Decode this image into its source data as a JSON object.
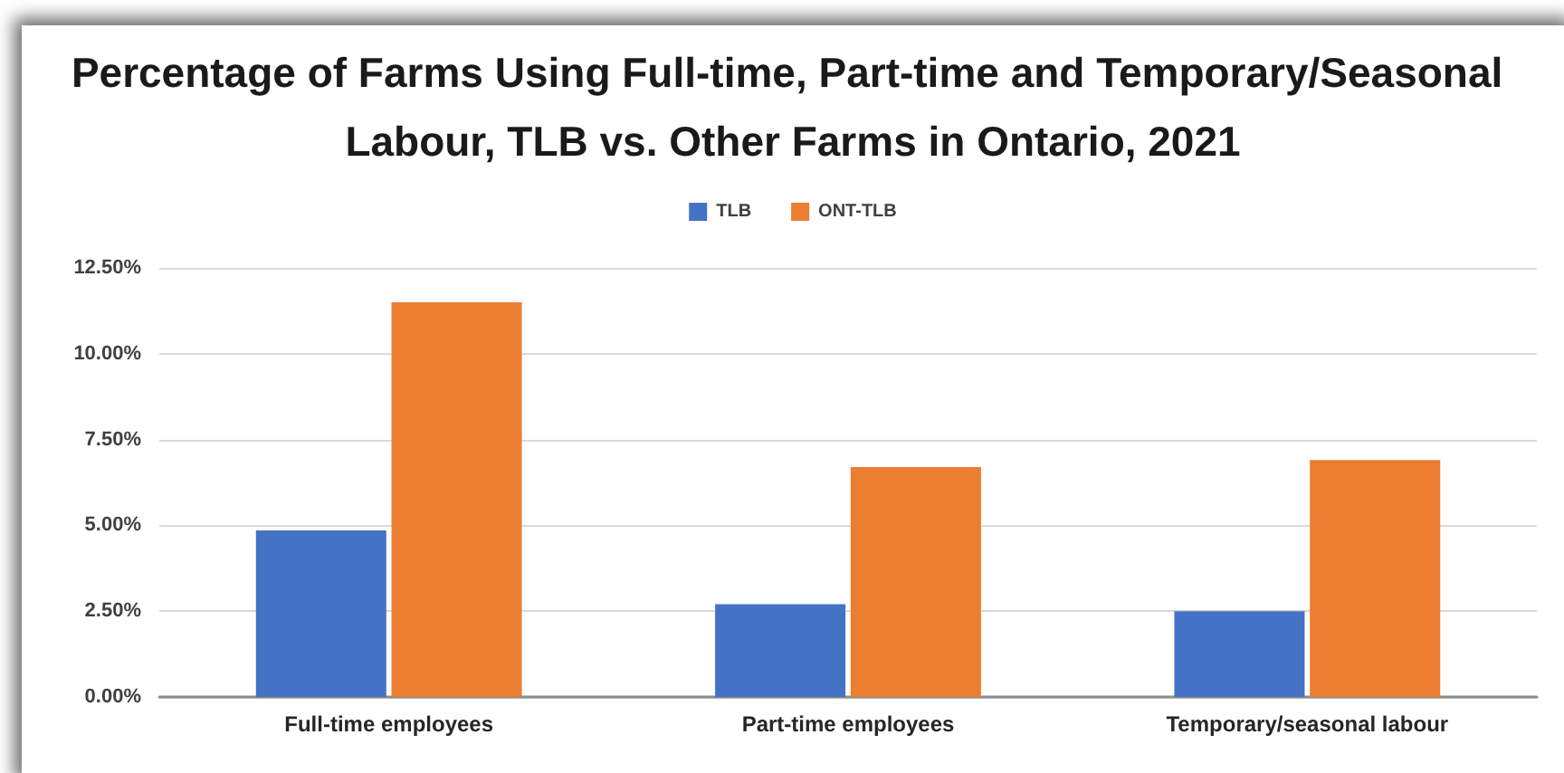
{
  "chart_data": {
    "type": "bar",
    "title": "Percentage of Farms Using Full-time, Part-time and Temporary/Seasonal Labour, TLB vs. Other Farms in Ontario, 2021",
    "categories": [
      "Full-time employees",
      "Part-time employees",
      "Temporary/seasonal labour"
    ],
    "series": [
      {
        "name": "TLB",
        "color": "#4472c4",
        "values": [
          4.85,
          2.7,
          2.5
        ]
      },
      {
        "name": "ONT-TLB",
        "color": "#ed7d31",
        "values": [
          11.5,
          6.7,
          6.9
        ]
      }
    ],
    "ylim": [
      0,
      12.5
    ],
    "yticks": [
      {
        "value": 0,
        "label": "0.00%"
      },
      {
        "value": 2.5,
        "label": "2.50%"
      },
      {
        "value": 5,
        "label": "5.00%"
      },
      {
        "value": 7.5,
        "label": "7.50%"
      },
      {
        "value": 10,
        "label": "10.00%"
      },
      {
        "value": 12.5,
        "label": "12.50%"
      }
    ],
    "grid": "y",
    "legend": "top"
  }
}
